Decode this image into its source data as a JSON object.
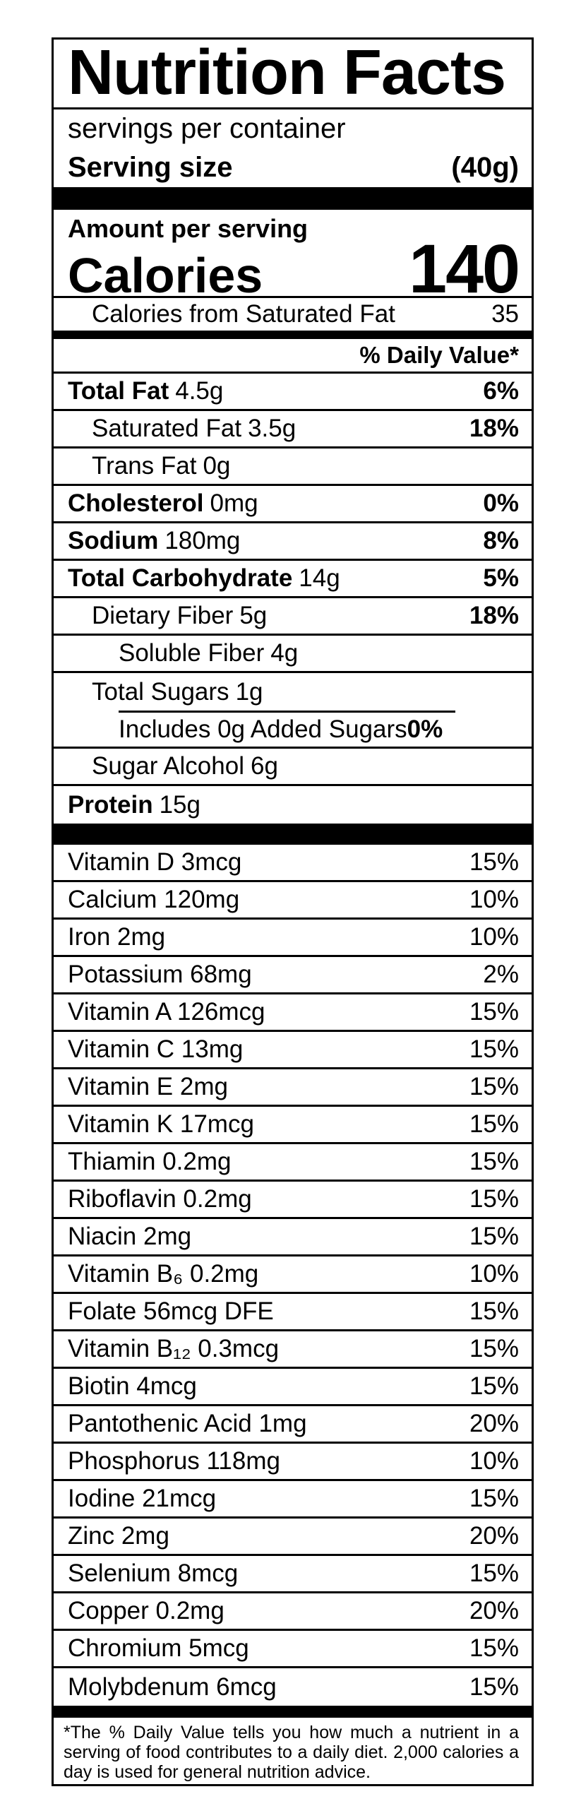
{
  "label": {
    "title": "Nutrition Facts",
    "servings_per_container": "servings per container",
    "serving_size_label": "Serving size",
    "serving_size_value": "(40g)",
    "amount_per_serving": "Amount per serving",
    "calories_label": "Calories",
    "calories_value": "140",
    "calories_from_sat_fat_label": "Calories from Saturated Fat",
    "calories_from_sat_fat_value": "35",
    "daily_value_header": "% Daily Value*",
    "rows": [
      {
        "name": "Total Fat",
        "amount": "4.5g",
        "dv": "6%"
      },
      {
        "name": "Saturated Fat",
        "amount": "3.5g",
        "dv": "18%"
      },
      {
        "name": "Trans Fat",
        "amount": "0g",
        "dv": ""
      },
      {
        "name": "Cholesterol",
        "amount": "0mg",
        "dv": "0%"
      },
      {
        "name": "Sodium",
        "amount": "180mg",
        "dv": "8%"
      },
      {
        "name": "Total Carbohydrate",
        "amount": "14g",
        "dv": "5%"
      },
      {
        "name": "Dietary Fiber",
        "amount": "5g",
        "dv": "18%"
      },
      {
        "name": "Soluble Fiber",
        "amount": "4g",
        "dv": ""
      },
      {
        "name": "Total Sugars",
        "amount": "1g",
        "dv": ""
      },
      {
        "name": "Includes 0g Added Sugars",
        "amount": "",
        "dv": "0%"
      },
      {
        "name": "Sugar Alcohol",
        "amount": "6g",
        "dv": ""
      },
      {
        "name": "Protein",
        "amount": "15g",
        "dv": ""
      }
    ],
    "vitamins": [
      {
        "name": "Vitamin D 3mcg",
        "dv": "15%"
      },
      {
        "name": "Calcium 120mg",
        "dv": "10%"
      },
      {
        "name": "Iron 2mg",
        "dv": "10%"
      },
      {
        "name": "Potassium 68mg",
        "dv": "2%"
      },
      {
        "name": "Vitamin A 126mcg",
        "dv": "15%"
      },
      {
        "name": "Vitamin C 13mg",
        "dv": "15%"
      },
      {
        "name": "Vitamin E 2mg",
        "dv": "15%"
      },
      {
        "name": "Vitamin K 17mcg",
        "dv": "15%"
      },
      {
        "name": "Thiamin 0.2mg",
        "dv": "15%"
      },
      {
        "name": "Riboflavin 0.2mg",
        "dv": "15%"
      },
      {
        "name": "Niacin 2mg",
        "dv": "15%"
      },
      {
        "name": "Vitamin B₆ 0.2mg",
        "dv": "10%"
      },
      {
        "name": "Folate 56mcg DFE",
        "dv": "15%"
      },
      {
        "name": "Vitamin B₁₂ 0.3mcg",
        "dv": "15%"
      },
      {
        "name": "Biotin 4mcg",
        "dv": "15%"
      },
      {
        "name": "Pantothenic Acid 1mg",
        "dv": "20%"
      },
      {
        "name": "Phosphorus 118mg",
        "dv": "10%"
      },
      {
        "name": "Iodine 21mcg",
        "dv": "15%"
      },
      {
        "name": "Zinc 2mg",
        "dv": "20%"
      },
      {
        "name": "Selenium 8mcg",
        "dv": "15%"
      },
      {
        "name": "Copper 0.2mg",
        "dv": "20%"
      },
      {
        "name": "Chromium 5mcg",
        "dv": "15%"
      },
      {
        "name": "Molybdenum 6mcg",
        "dv": "15%"
      }
    ],
    "footnote": "*The % Daily Value tells you how much a nutrient in a serving of food contributes to a daily diet. 2,000 calories a day is used for general nutrition advice.",
    "colors": {
      "ink": "#000000",
      "paper": "#ffffff"
    }
  }
}
